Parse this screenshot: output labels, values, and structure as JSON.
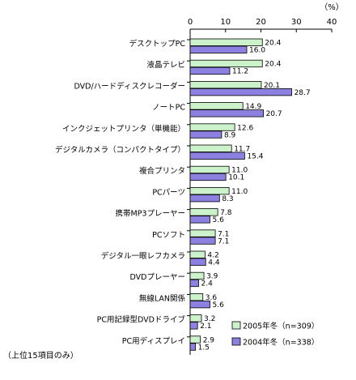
{
  "chart_data": {
    "type": "bar",
    "orientation": "horizontal",
    "unit_label": "（%）",
    "note": "（上位15項目のみ）",
    "xlim": [
      0,
      40
    ],
    "x_ticks": [
      0,
      10,
      20,
      30,
      40
    ],
    "grid": false,
    "legend_position": "bottom-right",
    "categories": [
      "デスクトップPC",
      "液晶テレビ",
      "DVD/ハードディスクレコーダー",
      "ノートPC",
      "インクジェットプリンタ（単機能）",
      "デジタルカメラ（コンパクトタイプ）",
      "複合プリンタ",
      "PCパーツ",
      "携帯MP3プレーヤー",
      "PCソフト",
      "デジタル一眼レフカメラ",
      "DVDプレーヤー",
      "無線LAN関係",
      "PC用記録型DVDドライブ",
      "PC用ディスプレイ"
    ],
    "series": [
      {
        "name": "2005年冬（n=309）",
        "color": "#ccf2cc",
        "values": [
          20.4,
          20.4,
          20.1,
          14.9,
          12.6,
          11.7,
          11.0,
          11.0,
          7.8,
          7.1,
          4.2,
          3.9,
          3.6,
          3.2,
          2.9
        ]
      },
      {
        "name": "2004年冬（n=338）",
        "color": "#8c80e0",
        "values": [
          16.0,
          11.2,
          28.7,
          20.7,
          8.9,
          15.4,
          10.1,
          8.3,
          5.6,
          7.1,
          4.4,
          2.4,
          5.6,
          2.1,
          1.5
        ]
      }
    ]
  }
}
